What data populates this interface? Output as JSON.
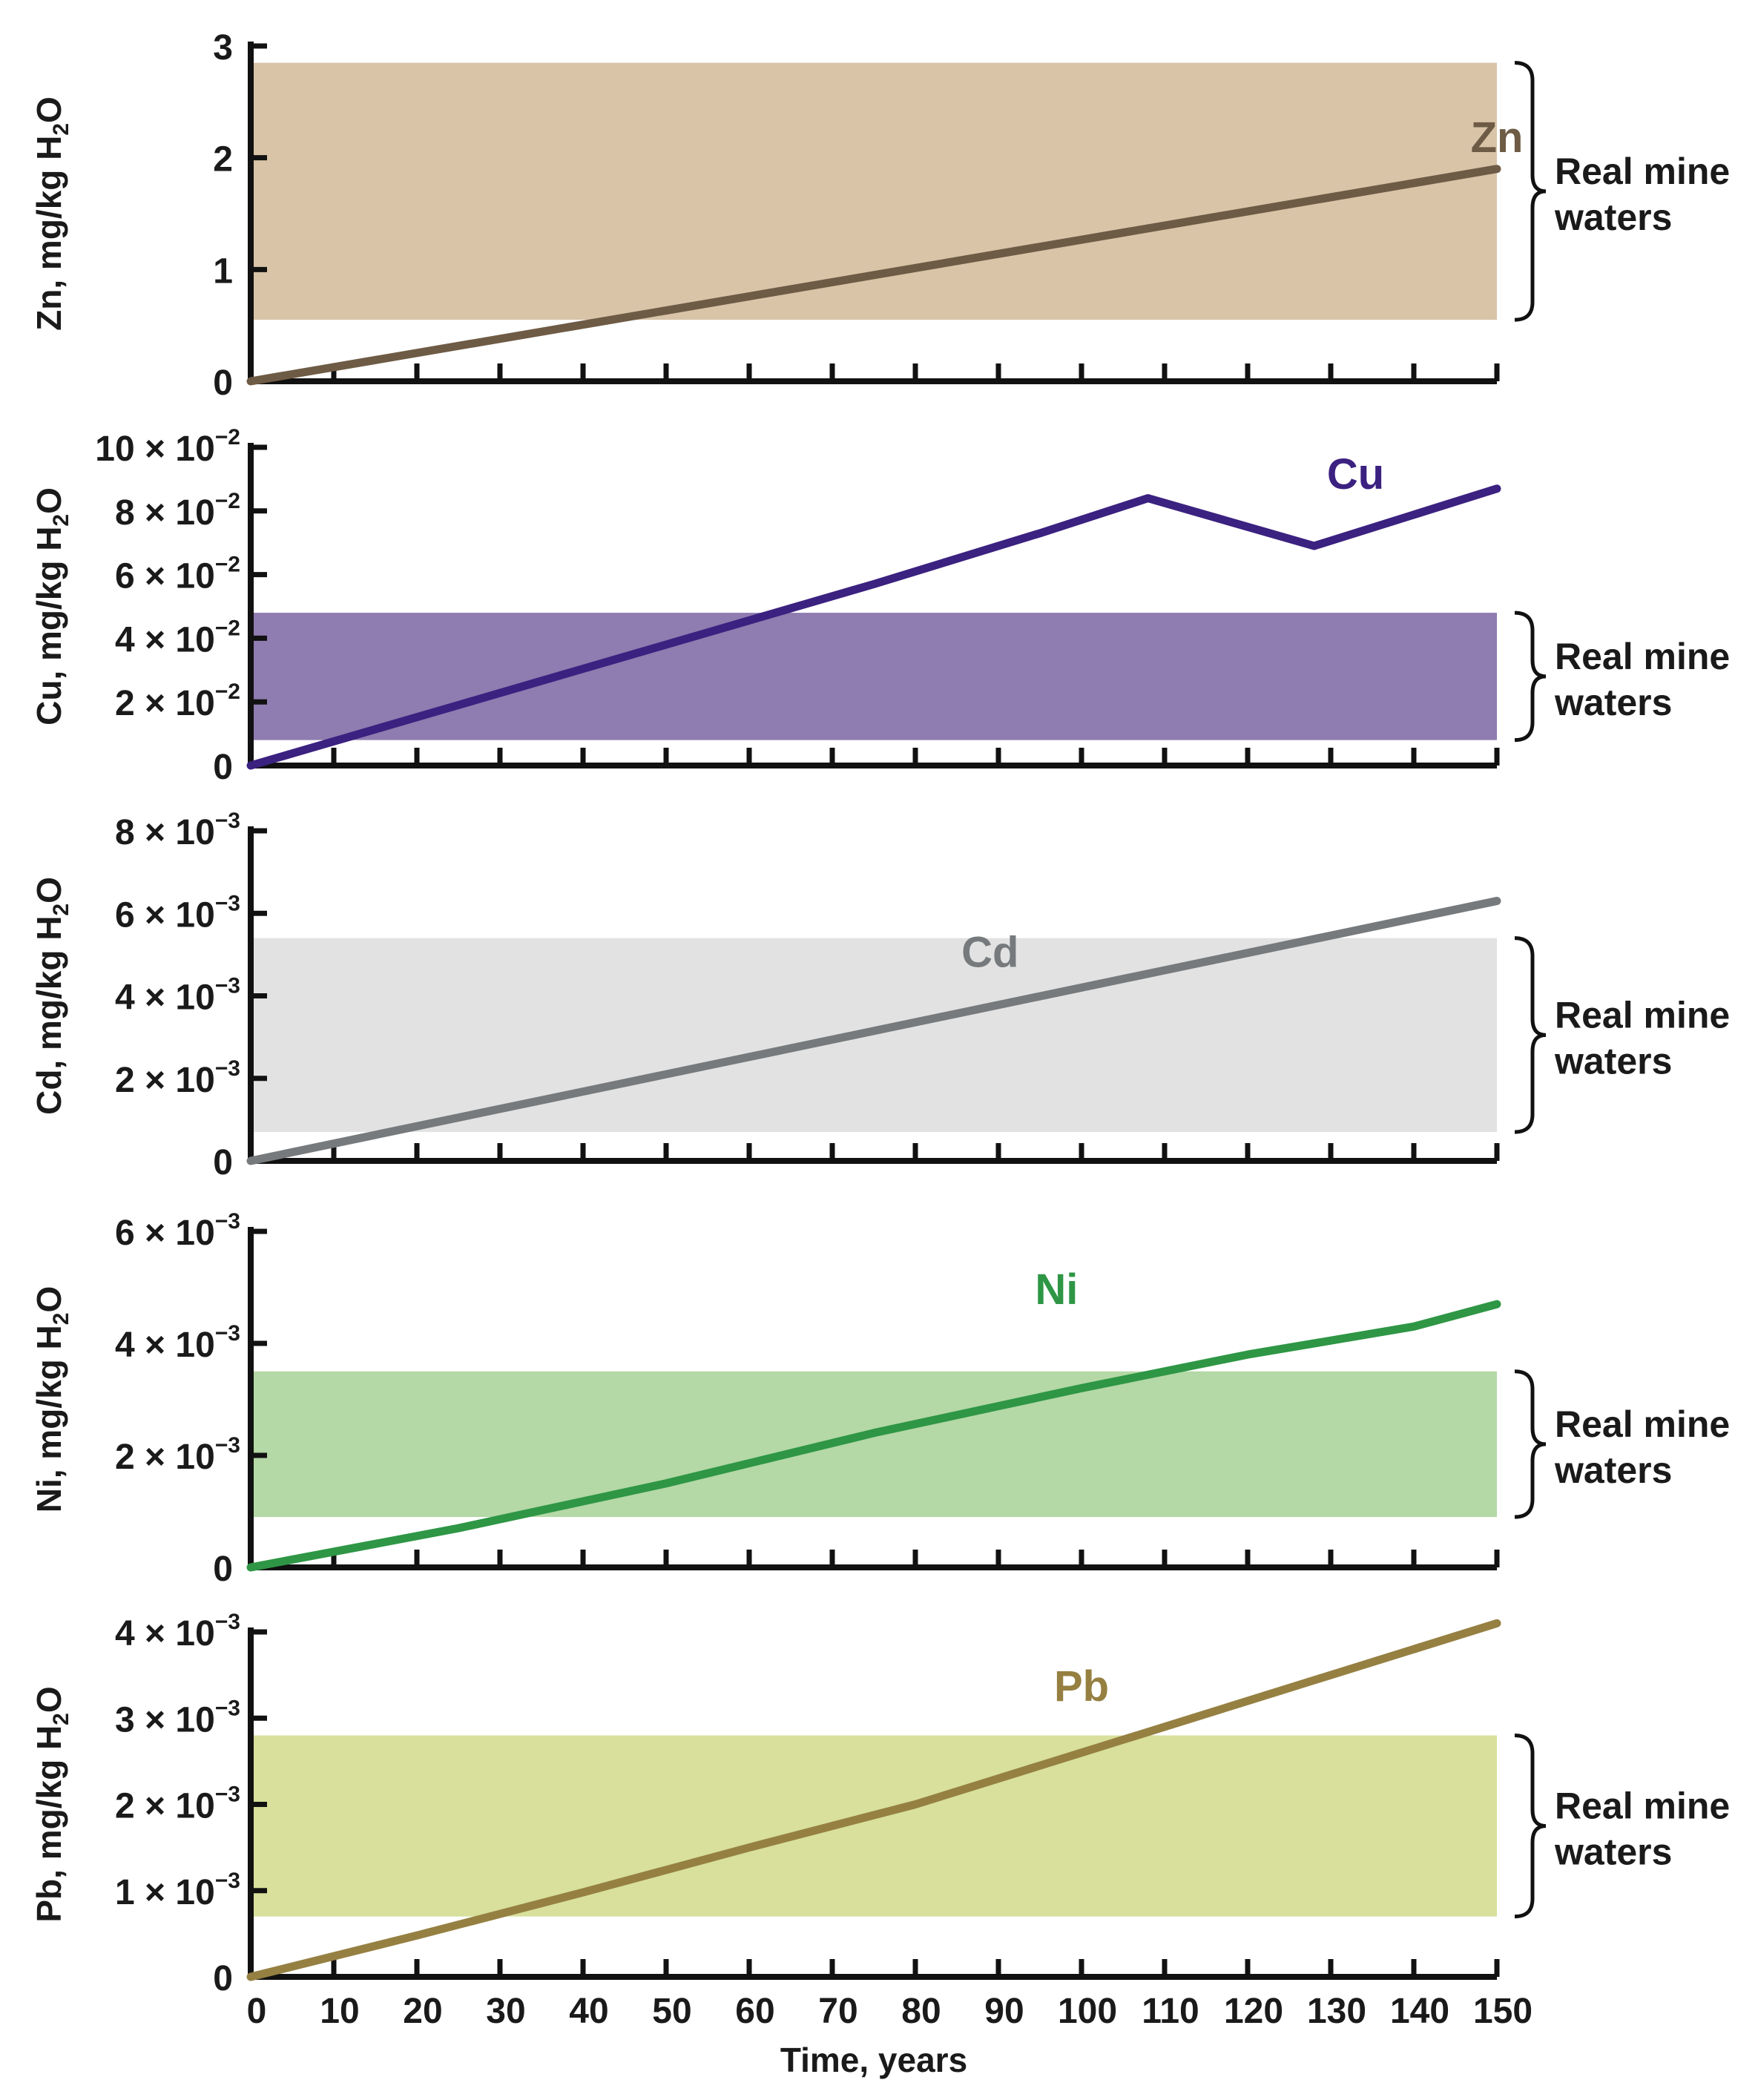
{
  "chart_data": [
    {
      "type": "line",
      "element": "Zn",
      "ylabel": "Zn, mg/kg H",
      "ylabel_sub": "2",
      "ylabel_end": "O",
      "ylim": [
        0,
        3
      ],
      "yticks": [
        {
          "value": 0,
          "mant": "0",
          "exp": ""
        },
        {
          "value": 1,
          "mant": "1",
          "exp": ""
        },
        {
          "value": 2,
          "mant": "2",
          "exp": ""
        },
        {
          "value": 3,
          "mant": "3",
          "exp": ""
        }
      ],
      "band": [
        0.55,
        2.85
      ],
      "band_label": [
        "Real mine",
        "waters"
      ],
      "series_label": "Zn",
      "label_at": [
        150,
        2.05
      ],
      "color": "#6e5b45",
      "band_color": "#d9c4a8",
      "x": [
        0,
        150
      ],
      "y": [
        0,
        1.9
      ]
    },
    {
      "type": "line",
      "element": "Cu",
      "ylabel": "Cu, mg/kg H",
      "ylabel_sub": "2",
      "ylabel_end": "O",
      "ylim": [
        0,
        0.1
      ],
      "yticks": [
        {
          "value": 0,
          "mant": "0",
          "exp": ""
        },
        {
          "value": 0.02,
          "mant": "2 × 10",
          "exp": "−2"
        },
        {
          "value": 0.04,
          "mant": "4 × 10",
          "exp": "−2"
        },
        {
          "value": 0.06,
          "mant": "6 × 10",
          "exp": "−2"
        },
        {
          "value": 0.08,
          "mant": "8 × 10",
          "exp": "−2"
        },
        {
          "value": 0.1,
          "mant": "10 × 10",
          "exp": "−2"
        }
      ],
      "band": [
        0.008,
        0.048
      ],
      "band_label": [
        "Real mine",
        "waters"
      ],
      "series_label": "Cu",
      "label_at": [
        133,
        0.087
      ],
      "color": "#3b2180",
      "band_color": "#8f7cb0",
      "x": [
        0,
        25,
        50,
        75,
        95,
        108,
        128,
        150
      ],
      "y": [
        0,
        0.019,
        0.038,
        0.057,
        0.073,
        0.084,
        0.069,
        0.087
      ]
    },
    {
      "type": "line",
      "element": "Cd",
      "ylabel": "Cd, mg/kg H",
      "ylabel_sub": "2",
      "ylabel_end": "O",
      "ylim": [
        0,
        0.008
      ],
      "yticks": [
        {
          "value": 0,
          "mant": "0",
          "exp": ""
        },
        {
          "value": 0.002,
          "mant": "2 × 10",
          "exp": "−3"
        },
        {
          "value": 0.004,
          "mant": "4 × 10",
          "exp": "−3"
        },
        {
          "value": 0.006,
          "mant": "6 × 10",
          "exp": "−3"
        },
        {
          "value": 0.008,
          "mant": "8 × 10",
          "exp": "−3"
        }
      ],
      "band": [
        0.0007,
        0.0054
      ],
      "band_label": [
        "Real mine",
        "waters"
      ],
      "series_label": "Cd",
      "label_at": [
        89,
        0.0047
      ],
      "color": "#777a7c",
      "band_color": "#e2e2e2",
      "x": [
        0,
        150
      ],
      "y": [
        0,
        0.0063
      ]
    },
    {
      "type": "line",
      "element": "Ni",
      "ylabel": "Ni, mg/kg H",
      "ylabel_sub": "2",
      "ylabel_end": "O",
      "ylim": [
        0,
        0.006
      ],
      "yticks": [
        {
          "value": 0,
          "mant": "0",
          "exp": ""
        },
        {
          "value": 0.002,
          "mant": "2 × 10",
          "exp": "−3"
        },
        {
          "value": 0.004,
          "mant": "4 × 10",
          "exp": "−3"
        },
        {
          "value": 0.006,
          "mant": "6 × 10",
          "exp": "−3"
        }
      ],
      "band": [
        0.0009,
        0.0035
      ],
      "band_label": [
        "Real mine",
        "waters"
      ],
      "series_label": "Ni",
      "label_at": [
        97,
        0.0047
      ],
      "color": "#2e9645",
      "band_color": "#b4d8a6",
      "x": [
        0,
        25,
        50,
        75,
        100,
        120,
        140,
        150
      ],
      "y": [
        0,
        0.0007,
        0.0015,
        0.0024,
        0.0032,
        0.0038,
        0.0043,
        0.0047
      ]
    },
    {
      "type": "line",
      "element": "Pb",
      "ylabel": "Pb, mg/kg H",
      "ylabel_sub": "2",
      "ylabel_end": "O",
      "ylim": [
        0,
        0.004
      ],
      "yticks": [
        {
          "value": 0,
          "mant": "0",
          "exp": ""
        },
        {
          "value": 0.001,
          "mant": "1 × 10",
          "exp": "−3"
        },
        {
          "value": 0.002,
          "mant": "2 × 10",
          "exp": "−3"
        },
        {
          "value": 0.003,
          "mant": "3 × 10",
          "exp": "−3"
        },
        {
          "value": 0.004,
          "mant": "4 × 10",
          "exp": "−3"
        }
      ],
      "band": [
        0.0007,
        0.0028
      ],
      "band_label": [
        "Real mine",
        "waters"
      ],
      "series_label": "Pb",
      "label_at": [
        100,
        0.0032
      ],
      "color": "#958042",
      "band_color": "#d8e09b",
      "x": [
        0,
        20,
        40,
        60,
        80,
        100,
        120,
        150
      ],
      "y": [
        0,
        0.00048,
        0.00098,
        0.0015,
        0.002,
        0.0026,
        0.0032,
        0.0041
      ]
    }
  ],
  "xaxis": {
    "xlim": [
      0,
      150
    ],
    "ticks": [
      0,
      10,
      20,
      30,
      40,
      50,
      60,
      70,
      80,
      90,
      100,
      110,
      120,
      130,
      140,
      150
    ],
    "tick_labels": [
      "0",
      "10",
      "20",
      "30",
      "40",
      "50",
      "60",
      "70",
      "80",
      "90",
      "100",
      "110",
      "120",
      "130",
      "140",
      "150"
    ],
    "title": "Time, years"
  }
}
